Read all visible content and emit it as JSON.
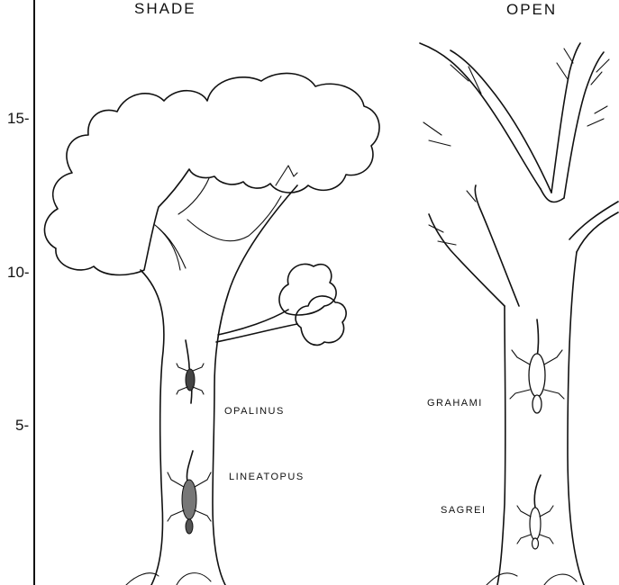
{
  "headers": {
    "shade": "SHADE",
    "open": "OPEN"
  },
  "axis": {
    "ticks": [
      "15-",
      "10-",
      "5-"
    ]
  },
  "species": {
    "opalinus": "OPALINUS",
    "lineatopus": "LINEATOPUS",
    "grahami": "GRAHAMI",
    "sagrei": "SAGREI"
  }
}
